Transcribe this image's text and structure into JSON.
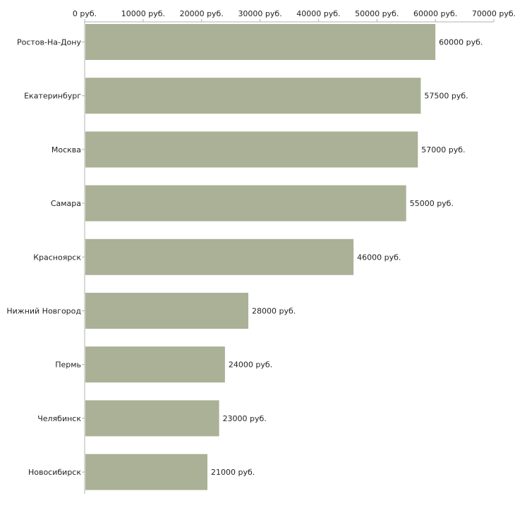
{
  "colors": {
    "bar": "#aab196",
    "axis": "#b0b0b0",
    "background": "#ffffff"
  },
  "chart_data": {
    "type": "bar",
    "orientation": "horizontal",
    "categories": [
      "Ростов-На-Дону",
      "Екатеринбург",
      "Москва",
      "Самара",
      "Красноярск",
      "Нижний Новгород",
      "Пермь",
      "Челябинск",
      "Новосибирск"
    ],
    "values": [
      60000,
      57500,
      57000,
      55000,
      46000,
      28000,
      24000,
      23000,
      21000
    ],
    "value_labels": [
      "60000 руб.",
      "57500 руб.",
      "57000 руб.",
      "55000 руб.",
      "46000 руб.",
      "28000 руб.",
      "24000 руб.",
      "23000 руб.",
      "21000 руб."
    ],
    "xlim": [
      0,
      70000
    ],
    "x_ticks": [
      0,
      10000,
      20000,
      30000,
      40000,
      50000,
      60000,
      70000
    ],
    "x_tick_labels": [
      "0 руб.",
      "10000 руб.",
      "20000 руб.",
      "30000 руб.",
      "40000 руб.",
      "50000 руб.",
      "60000 руб.",
      "70000 руб."
    ],
    "axis_position": "top",
    "grid": false,
    "title": "",
    "xlabel": "",
    "ylabel": ""
  }
}
